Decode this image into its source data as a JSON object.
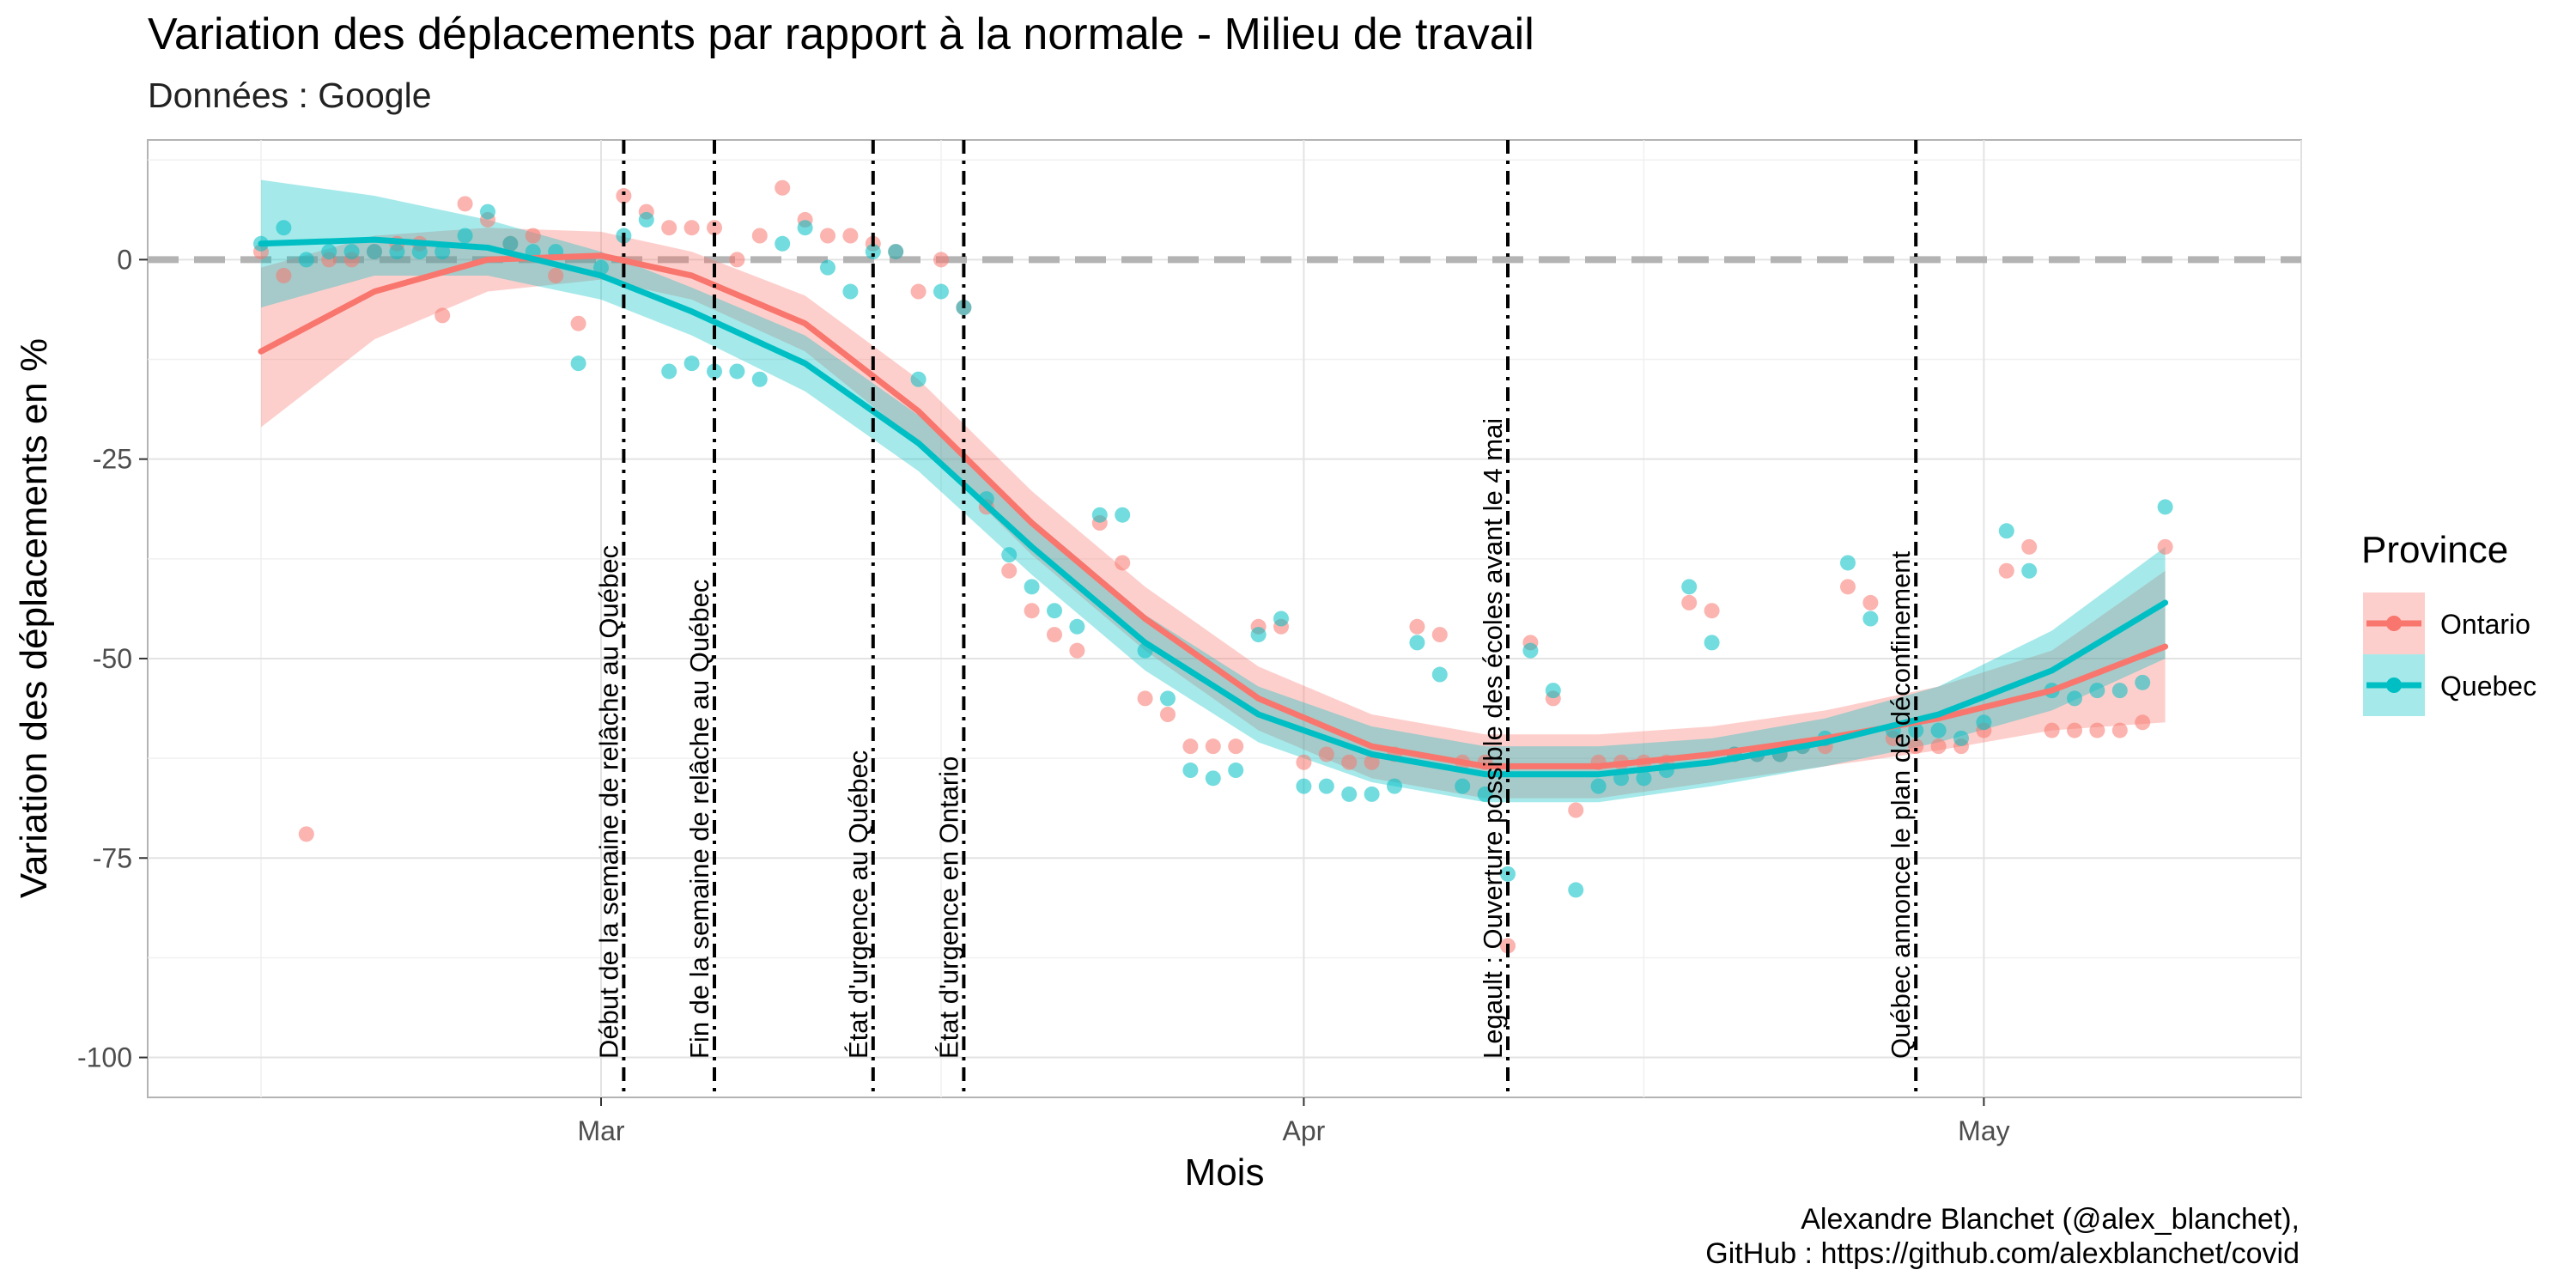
{
  "header": {
    "title": "Variation des déplacements par rapport à la normale - Milieu de travail",
    "subtitle": "Données : Google"
  },
  "caption": {
    "line1": "Alexandre Blanchet (@alex_blanchet),",
    "line2": "GitHub : https://github.com/alexblanchet/covid"
  },
  "chart_data": {
    "type": "scatter",
    "xlabel": "Mois",
    "ylabel": "Variation des déplacements en %",
    "x_unit": "date (2020)",
    "xlim": [
      "2020-02-10",
      "2020-05-15"
    ],
    "ylim": [
      -105,
      15
    ],
    "x_ticks": [
      {
        "date": "2020-03-01",
        "label": "Mar"
      },
      {
        "date": "2020-04-01",
        "label": "Apr"
      },
      {
        "date": "2020-05-01",
        "label": "May"
      }
    ],
    "y_ticks": [
      0,
      -25,
      -50,
      -75,
      -100
    ],
    "grid": true,
    "reference_line": {
      "y": 0,
      "style": "dashed",
      "color": "#b3b3b3"
    },
    "legend": {
      "title": "Province",
      "position": "right"
    },
    "events": [
      {
        "date": "2020-03-02",
        "label": "Début de la semaine de relâche au Québec"
      },
      {
        "date": "2020-03-06",
        "label": "Fin de la semaine de relâche au Québec"
      },
      {
        "date": "2020-03-13",
        "label": "État d'urgence au Québec"
      },
      {
        "date": "2020-03-17",
        "label": "État d'urgence en Ontario"
      },
      {
        "date": "2020-04-10",
        "label": "Legault : Ouverture possible des écoles avant le 4 mai"
      },
      {
        "date": "2020-04-28",
        "label": "Québec annonce le plan de déconfinement"
      }
    ],
    "series": [
      {
        "name": "Ontario",
        "color": "#F8766D",
        "points": [
          [
            "2020-02-15",
            1
          ],
          [
            "2020-02-16",
            -2
          ],
          [
            "2020-02-17",
            -72
          ],
          [
            "2020-02-18",
            0
          ],
          [
            "2020-02-19",
            0
          ],
          [
            "2020-02-20",
            1
          ],
          [
            "2020-02-21",
            2
          ],
          [
            "2020-02-22",
            2
          ],
          [
            "2020-02-23",
            -7
          ],
          [
            "2020-02-24",
            7
          ],
          [
            "2020-02-25",
            5
          ],
          [
            "2020-02-26",
            2
          ],
          [
            "2020-02-27",
            3
          ],
          [
            "2020-02-28",
            -2
          ],
          [
            "2020-02-29",
            -8
          ],
          [
            "2020-03-02",
            8
          ],
          [
            "2020-03-03",
            6
          ],
          [
            "2020-03-04",
            4
          ],
          [
            "2020-03-05",
            4
          ],
          [
            "2020-03-06",
            4
          ],
          [
            "2020-03-07",
            0
          ],
          [
            "2020-03-08",
            3
          ],
          [
            "2020-03-09",
            9
          ],
          [
            "2020-03-10",
            5
          ],
          [
            "2020-03-11",
            3
          ],
          [
            "2020-03-12",
            3
          ],
          [
            "2020-03-13",
            2
          ],
          [
            "2020-03-14",
            1
          ],
          [
            "2020-03-15",
            -4
          ],
          [
            "2020-03-16",
            0
          ],
          [
            "2020-03-17",
            -6
          ],
          [
            "2020-03-18",
            -31
          ],
          [
            "2020-03-19",
            -39
          ],
          [
            "2020-03-20",
            -44
          ],
          [
            "2020-03-21",
            -47
          ],
          [
            "2020-03-22",
            -49
          ],
          [
            "2020-03-23",
            -33
          ],
          [
            "2020-03-24",
            -38
          ],
          [
            "2020-03-25",
            -55
          ],
          [
            "2020-03-26",
            -57
          ],
          [
            "2020-03-27",
            -61
          ],
          [
            "2020-03-28",
            -61
          ],
          [
            "2020-03-29",
            -61
          ],
          [
            "2020-03-30",
            -46
          ],
          [
            "2020-03-31",
            -46
          ],
          [
            "2020-04-01",
            -63
          ],
          [
            "2020-04-02",
            -62
          ],
          [
            "2020-04-03",
            -63
          ],
          [
            "2020-04-04",
            -63
          ],
          [
            "2020-04-05",
            -62
          ],
          [
            "2020-04-06",
            -46
          ],
          [
            "2020-04-07",
            -47
          ],
          [
            "2020-04-08",
            -63
          ],
          [
            "2020-04-09",
            -63
          ],
          [
            "2020-04-10",
            -86
          ],
          [
            "2020-04-11",
            -48
          ],
          [
            "2020-04-12",
            -55
          ],
          [
            "2020-04-13",
            -69
          ],
          [
            "2020-04-14",
            -63
          ],
          [
            "2020-04-15",
            -63
          ],
          [
            "2020-04-16",
            -63
          ],
          [
            "2020-04-17",
            -63
          ],
          [
            "2020-04-18",
            -43
          ],
          [
            "2020-04-19",
            -44
          ],
          [
            "2020-04-20",
            -62
          ],
          [
            "2020-04-21",
            -62
          ],
          [
            "2020-04-22",
            -62
          ],
          [
            "2020-04-23",
            -61
          ],
          [
            "2020-04-24",
            -61
          ],
          [
            "2020-04-25",
            -41
          ],
          [
            "2020-04-26",
            -43
          ],
          [
            "2020-04-27",
            -60
          ],
          [
            "2020-04-28",
            -61
          ],
          [
            "2020-04-29",
            -61
          ],
          [
            "2020-04-30",
            -61
          ],
          [
            "2020-05-01",
            -59
          ],
          [
            "2020-05-02",
            -39
          ],
          [
            "2020-05-03",
            -36
          ],
          [
            "2020-05-04",
            -59
          ],
          [
            "2020-05-05",
            -59
          ],
          [
            "2020-05-06",
            -59
          ],
          [
            "2020-05-07",
            -59
          ],
          [
            "2020-05-08",
            -58
          ],
          [
            "2020-05-09",
            -36
          ]
        ],
        "fit": [
          [
            "2020-02-15",
            -11.5
          ],
          [
            "2020-02-20",
            -4
          ],
          [
            "2020-02-25",
            0
          ],
          [
            "2020-03-01",
            0.5
          ],
          [
            "2020-03-05",
            -2
          ],
          [
            "2020-03-10",
            -8
          ],
          [
            "2020-03-15",
            -19
          ],
          [
            "2020-03-20",
            -33
          ],
          [
            "2020-03-25",
            -45
          ],
          [
            "2020-03-30",
            -55
          ],
          [
            "2020-04-04",
            -61
          ],
          [
            "2020-04-09",
            -63.5
          ],
          [
            "2020-04-14",
            -63.5
          ],
          [
            "2020-04-19",
            -62
          ],
          [
            "2020-04-24",
            -60
          ],
          [
            "2020-04-29",
            -57.5
          ],
          [
            "2020-05-04",
            -54
          ],
          [
            "2020-05-09",
            -48.5
          ]
        ],
        "fit_band": [
          [
            "2020-02-15",
            -21,
            -1
          ],
          [
            "2020-02-20",
            -10,
            3
          ],
          [
            "2020-02-25",
            -4,
            4
          ],
          [
            "2020-03-01",
            -2.5,
            3.5
          ],
          [
            "2020-03-05",
            -5,
            1
          ],
          [
            "2020-03-10",
            -11.5,
            -4.5
          ],
          [
            "2020-03-15",
            -23,
            -15
          ],
          [
            "2020-03-20",
            -37,
            -29
          ],
          [
            "2020-03-25",
            -49,
            -41
          ],
          [
            "2020-03-30",
            -59,
            -51
          ],
          [
            "2020-04-04",
            -65,
            -57
          ],
          [
            "2020-04-09",
            -67.5,
            -59.5
          ],
          [
            "2020-04-14",
            -67.5,
            -59.5
          ],
          [
            "2020-04-19",
            -65.5,
            -58.5
          ],
          [
            "2020-04-24",
            -63.5,
            -56.5
          ],
          [
            "2020-04-29",
            -61.5,
            -53.5
          ],
          [
            "2020-05-04",
            -59,
            -49
          ],
          [
            "2020-05-09",
            -58,
            -39
          ]
        ]
      },
      {
        "name": "Quebec",
        "color": "#00BFC4",
        "points": [
          [
            "2020-02-15",
            2
          ],
          [
            "2020-02-16",
            4
          ],
          [
            "2020-02-17",
            0
          ],
          [
            "2020-02-18",
            1
          ],
          [
            "2020-02-19",
            1
          ],
          [
            "2020-02-20",
            1
          ],
          [
            "2020-02-21",
            1
          ],
          [
            "2020-02-22",
            1
          ],
          [
            "2020-02-23",
            1
          ],
          [
            "2020-02-24",
            3
          ],
          [
            "2020-02-25",
            6
          ],
          [
            "2020-02-26",
            2
          ],
          [
            "2020-02-27",
            1
          ],
          [
            "2020-02-28",
            1
          ],
          [
            "2020-02-29",
            -13
          ],
          [
            "2020-03-01",
            -1
          ],
          [
            "2020-03-02",
            3
          ],
          [
            "2020-03-03",
            5
          ],
          [
            "2020-03-04",
            -14
          ],
          [
            "2020-03-05",
            -13
          ],
          [
            "2020-03-06",
            -14
          ],
          [
            "2020-03-07",
            -14
          ],
          [
            "2020-03-08",
            -15
          ],
          [
            "2020-03-09",
            2
          ],
          [
            "2020-03-10",
            4
          ],
          [
            "2020-03-11",
            -1
          ],
          [
            "2020-03-12",
            -4
          ],
          [
            "2020-03-13",
            1
          ],
          [
            "2020-03-14",
            1
          ],
          [
            "2020-03-15",
            -15
          ],
          [
            "2020-03-16",
            -4
          ],
          [
            "2020-03-17",
            -6
          ],
          [
            "2020-03-18",
            -30
          ],
          [
            "2020-03-19",
            -37
          ],
          [
            "2020-03-20",
            -41
          ],
          [
            "2020-03-21",
            -44
          ],
          [
            "2020-03-22",
            -46
          ],
          [
            "2020-03-23",
            -32
          ],
          [
            "2020-03-24",
            -32
          ],
          [
            "2020-03-25",
            -49
          ],
          [
            "2020-03-26",
            -55
          ],
          [
            "2020-03-27",
            -64
          ],
          [
            "2020-03-28",
            -65
          ],
          [
            "2020-03-29",
            -64
          ],
          [
            "2020-03-30",
            -47
          ],
          [
            "2020-03-31",
            -45
          ],
          [
            "2020-04-01",
            -66
          ],
          [
            "2020-04-02",
            -66
          ],
          [
            "2020-04-03",
            -67
          ],
          [
            "2020-04-04",
            -67
          ],
          [
            "2020-04-05",
            -66
          ],
          [
            "2020-04-06",
            -48
          ],
          [
            "2020-04-07",
            -52
          ],
          [
            "2020-04-08",
            -66
          ],
          [
            "2020-04-09",
            -67
          ],
          [
            "2020-04-10",
            -77
          ],
          [
            "2020-04-11",
            -49
          ],
          [
            "2020-04-12",
            -54
          ],
          [
            "2020-04-13",
            -79
          ],
          [
            "2020-04-14",
            -66
          ],
          [
            "2020-04-15",
            -65
          ],
          [
            "2020-04-16",
            -65
          ],
          [
            "2020-04-17",
            -64
          ],
          [
            "2020-04-18",
            -41
          ],
          [
            "2020-04-19",
            -48
          ],
          [
            "2020-04-20",
            -62
          ],
          [
            "2020-04-21",
            -62
          ],
          [
            "2020-04-22",
            -62
          ],
          [
            "2020-04-23",
            -61
          ],
          [
            "2020-04-24",
            -60
          ],
          [
            "2020-04-25",
            -38
          ],
          [
            "2020-04-26",
            -45
          ],
          [
            "2020-04-27",
            -59
          ],
          [
            "2020-04-28",
            -59
          ],
          [
            "2020-04-29",
            -59
          ],
          [
            "2020-04-30",
            -60
          ],
          [
            "2020-05-01",
            -58
          ],
          [
            "2020-05-02",
            -34
          ],
          [
            "2020-05-03",
            -39
          ],
          [
            "2020-05-04",
            -54
          ],
          [
            "2020-05-05",
            -55
          ],
          [
            "2020-05-06",
            -54
          ],
          [
            "2020-05-07",
            -54
          ],
          [
            "2020-05-08",
            -53
          ],
          [
            "2020-05-09",
            -31
          ]
        ],
        "fit": [
          [
            "2020-02-15",
            2
          ],
          [
            "2020-02-20",
            2.5
          ],
          [
            "2020-02-25",
            1.5
          ],
          [
            "2020-03-01",
            -2
          ],
          [
            "2020-03-05",
            -6.5
          ],
          [
            "2020-03-10",
            -13
          ],
          [
            "2020-03-15",
            -23
          ],
          [
            "2020-03-20",
            -36
          ],
          [
            "2020-03-25",
            -48
          ],
          [
            "2020-03-30",
            -57
          ],
          [
            "2020-04-04",
            -62
          ],
          [
            "2020-04-09",
            -64.5
          ],
          [
            "2020-04-14",
            -64.5
          ],
          [
            "2020-04-19",
            -63
          ],
          [
            "2020-04-24",
            -60.5
          ],
          [
            "2020-04-29",
            -57
          ],
          [
            "2020-05-04",
            -51.5
          ],
          [
            "2020-05-09",
            -43
          ]
        ],
        "fit_band": [
          [
            "2020-02-15",
            -6,
            10
          ],
          [
            "2020-02-20",
            -2,
            8
          ],
          [
            "2020-02-25",
            -2,
            5
          ],
          [
            "2020-03-01",
            -5,
            1
          ],
          [
            "2020-03-05",
            -9.5,
            -3.5
          ],
          [
            "2020-03-10",
            -16.5,
            -9.5
          ],
          [
            "2020-03-15",
            -26.5,
            -19.5
          ],
          [
            "2020-03-20",
            -39.5,
            -32.5
          ],
          [
            "2020-03-25",
            -51.5,
            -44.5
          ],
          [
            "2020-03-30",
            -60.5,
            -53.5
          ],
          [
            "2020-04-04",
            -65.5,
            -58.5
          ],
          [
            "2020-04-09",
            -68,
            -61
          ],
          [
            "2020-04-14",
            -68,
            -61
          ],
          [
            "2020-04-19",
            -66,
            -60
          ],
          [
            "2020-04-24",
            -63.5,
            -57.5
          ],
          [
            "2020-04-29",
            -60.5,
            -53.5
          ],
          [
            "2020-05-04",
            -56.5,
            -46.5
          ],
          [
            "2020-05-09",
            -50,
            -36
          ]
        ]
      }
    ]
  }
}
